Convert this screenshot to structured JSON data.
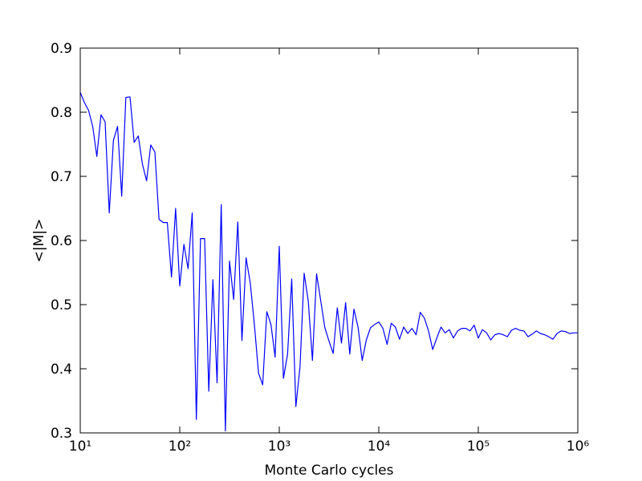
{
  "chart_data": {
    "type": "line",
    "xlabel": "Monte Carlo cycles",
    "ylabel": "<|M|>",
    "xscale": "log",
    "xlim": [
      10,
      1000000
    ],
    "ylim": [
      0.3,
      0.9
    ],
    "xticks": [
      {
        "value": 10,
        "label": "10¹"
      },
      {
        "value": 100,
        "label": "10²"
      },
      {
        "value": 1000,
        "label": "10³"
      },
      {
        "value": 10000,
        "label": "10⁴"
      },
      {
        "value": 100000,
        "label": "10⁵"
      },
      {
        "value": 1000000,
        "label": "10⁶"
      }
    ],
    "yticks": [
      0.3,
      0.4,
      0.5,
      0.6,
      0.7,
      0.8,
      0.9
    ],
    "x": [
      10,
      11.01,
      12.12,
      13.34,
      14.68,
      16.16,
      17.78,
      19.57,
      21.54,
      23.71,
      26.1,
      28.73,
      31.62,
      34.81,
      38.31,
      42.17,
      46.42,
      51.09,
      56.23,
      61.9,
      68.13,
      74.99,
      82.54,
      90.85,
      100,
      110.1,
      121.2,
      133.4,
      146.8,
      161.6,
      177.8,
      195.7,
      215.4,
      237.1,
      261,
      287.3,
      316.2,
      348.1,
      383.1,
      421.7,
      464.2,
      510.9,
      562.3,
      619,
      681.3,
      749.9,
      825.4,
      908.5,
      1000,
      1101,
      1212,
      1334,
      1468,
      1616,
      1778,
      1957,
      2154,
      2371,
      2610,
      2873,
      3162,
      3481,
      3831,
      4217,
      4642,
      5109,
      5623,
      6190,
      6813,
      7499,
      8254,
      9085,
      10000,
      11010,
      12120,
      13340,
      14680,
      16160,
      17780,
      19570,
      21540,
      23710,
      26100,
      28730,
      31620,
      34810,
      38310,
      42170,
      46420,
      51090,
      56230,
      61900,
      68130,
      74990,
      82540,
      90850,
      100000,
      110100,
      121200,
      133400,
      146800,
      161600,
      177800,
      195700,
      215400,
      237100,
      261000,
      287300,
      316200,
      348100,
      383100,
      421700,
      464200,
      510900,
      562300,
      619000,
      681300,
      749900,
      825400,
      908500,
      1000000
    ],
    "series": [
      {
        "color": "#0000ff",
        "values": [
          0.831,
          0.815,
          0.803,
          0.778,
          0.731,
          0.796,
          0.785,
          0.643,
          0.756,
          0.778,
          0.669,
          0.823,
          0.824,
          0.753,
          0.763,
          0.719,
          0.693,
          0.749,
          0.738,
          0.633,
          0.628,
          0.628,
          0.543,
          0.65,
          0.529,
          0.594,
          0.556,
          0.643,
          0.321,
          0.603,
          0.603,
          0.365,
          0.539,
          0.378,
          0.656,
          0.303,
          0.568,
          0.508,
          0.629,
          0.444,
          0.573,
          0.534,
          0.469,
          0.393,
          0.375,
          0.489,
          0.469,
          0.418,
          0.591,
          0.385,
          0.423,
          0.54,
          0.341,
          0.403,
          0.549,
          0.505,
          0.413,
          0.548,
          0.506,
          0.464,
          0.443,
          0.424,
          0.495,
          0.44,
          0.503,
          0.423,
          0.493,
          0.465,
          0.413,
          0.445,
          0.464,
          0.469,
          0.473,
          0.463,
          0.438,
          0.471,
          0.465,
          0.446,
          0.465,
          0.455,
          0.463,
          0.453,
          0.488,
          0.479,
          0.459,
          0.43,
          0.448,
          0.465,
          0.456,
          0.461,
          0.448,
          0.459,
          0.463,
          0.463,
          0.459,
          0.468,
          0.448,
          0.461,
          0.456,
          0.445,
          0.453,
          0.455,
          0.453,
          0.45,
          0.46,
          0.463,
          0.46,
          0.459,
          0.45,
          0.454,
          0.459,
          0.455,
          0.453,
          0.45,
          0.446,
          0.455,
          0.459,
          0.458,
          0.455,
          0.456,
          0.456
        ]
      }
    ]
  }
}
